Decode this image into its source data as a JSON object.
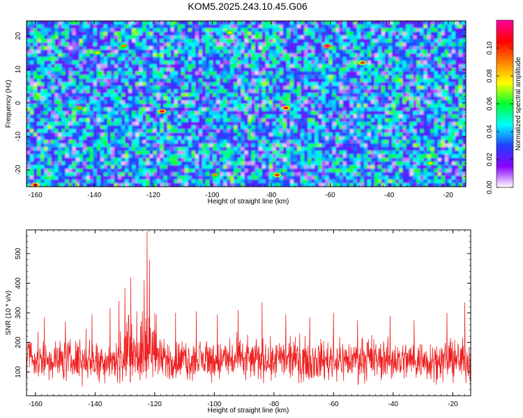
{
  "title": "KOM5.2025.243.10.45.G06",
  "chart_data": [
    {
      "type": "heatmap",
      "xlabel": "Height of straight line (km)",
      "ylabel": "Frequency (Hz)",
      "xlim": [
        -163,
        -14
      ],
      "ylim": [
        -25,
        24.5
      ],
      "x_ticks": [
        -160,
        -140,
        -120,
        -100,
        -80,
        -60,
        -40,
        -20
      ],
      "y_ticks": [
        20,
        10,
        0,
        -10,
        -20
      ],
      "colorbar": {
        "label": "Normalized spectral amplitude",
        "range": [
          0,
          0.12
        ],
        "ticks": [
          0.0,
          0.02,
          0.04,
          0.06,
          0.08,
          0.1
        ],
        "tick_labels": [
          "0.00",
          "0.02",
          "0.04",
          "0.06",
          "0.08",
          "0.10"
        ],
        "colormap": [
          "#ffffff",
          "#8a00ff",
          "#2040ff",
          "#00ffff",
          "#00ff30",
          "#ffff00",
          "#ff8000",
          "#ff0000",
          "#ff00a0"
        ]
      },
      "values_description": "dense speckle field, mostly 0.02–0.05",
      "peaks": [
        {
          "x": -160,
          "y": -24.5,
          "value": 0.11
        },
        {
          "x": -145,
          "y": -1.5,
          "value": 0.09
        },
        {
          "x": -139,
          "y": 15,
          "value": 0.08
        },
        {
          "x": -130,
          "y": 17,
          "value": 0.09
        },
        {
          "x": -117,
          "y": -2.5,
          "value": 0.11
        },
        {
          "x": -99,
          "y": -21.5,
          "value": 0.09
        },
        {
          "x": -94,
          "y": 21,
          "value": 0.08
        },
        {
          "x": -78,
          "y": -21.5,
          "value": 0.1
        },
        {
          "x": -75,
          "y": -1.5,
          "value": 0.11
        },
        {
          "x": -61,
          "y": 17,
          "value": 0.12
        },
        {
          "x": -49,
          "y": 12,
          "value": 0.1
        },
        {
          "x": -26,
          "y": -18,
          "value": 0.08
        }
      ]
    },
    {
      "type": "line",
      "xlabel": "Height of straight line (km)",
      "ylabel": "SNR (10 * v/v)",
      "xlim": [
        -163,
        -14
      ],
      "ylim": [
        20,
        580
      ],
      "x_ticks": [
        -160,
        -140,
        -120,
        -100,
        -80,
        -60,
        -40,
        -20
      ],
      "y_ticks": [
        100,
        200,
        300,
        400,
        500
      ],
      "color": "#ee2020",
      "baseline_range": [
        40,
        240
      ],
      "peaks": [
        {
          "x": -157,
          "y": 285
        },
        {
          "x": -150,
          "y": 270
        },
        {
          "x": -141,
          "y": 295
        },
        {
          "x": -135,
          "y": 315
        },
        {
          "x": -132,
          "y": 340
        },
        {
          "x": -130,
          "y": 385
        },
        {
          "x": -128,
          "y": 420
        },
        {
          "x": -126,
          "y": 305
        },
        {
          "x": -123.5,
          "y": 410
        },
        {
          "x": -122.5,
          "y": 575
        },
        {
          "x": -121.7,
          "y": 480
        },
        {
          "x": -120,
          "y": 300
        },
        {
          "x": -113,
          "y": 300
        },
        {
          "x": -106,
          "y": 305
        },
        {
          "x": -99,
          "y": 295
        },
        {
          "x": -92,
          "y": 310
        },
        {
          "x": -84,
          "y": 335
        },
        {
          "x": -76,
          "y": 295
        },
        {
          "x": -68,
          "y": 285
        },
        {
          "x": -60,
          "y": 300
        },
        {
          "x": -52,
          "y": 275
        },
        {
          "x": -41,
          "y": 290
        },
        {
          "x": -33,
          "y": 275
        },
        {
          "x": -22,
          "y": 300
        },
        {
          "x": -16,
          "y": 335
        }
      ]
    }
  ]
}
